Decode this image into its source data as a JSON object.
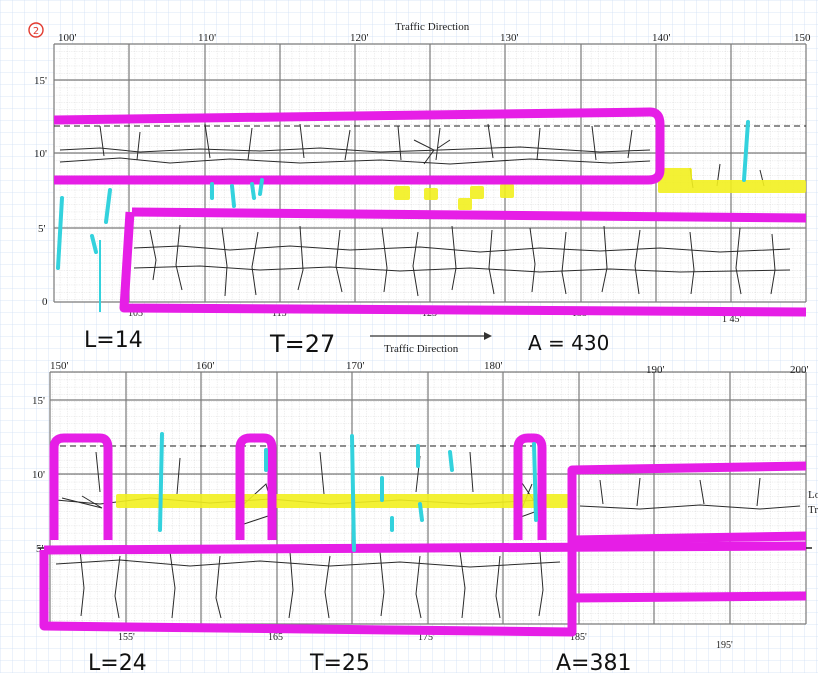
{
  "page_marker": "2",
  "panel_top": {
    "title": "Traffic Direction",
    "station_labels": [
      "100'",
      "110'",
      "120'",
      "130'",
      "140'",
      "150"
    ],
    "bottom_station_labels": [
      "105",
      "115'",
      "125'",
      "135'",
      "1 45'"
    ],
    "y_labels": [
      "15'",
      "10'",
      "5'",
      "0"
    ],
    "direction_label": "Traffic Direction",
    "notes": {
      "L": "L=14",
      "T": "T=27",
      "A": "A = 430"
    }
  },
  "panel_bottom": {
    "station_labels": [
      "150'",
      "160'",
      "170'",
      "180'",
      "190'",
      "200'"
    ],
    "bottom_station_labels": [
      "155'",
      "165",
      "175'",
      "185'",
      "195'"
    ],
    "y_labels": [
      "15'",
      "10'",
      "5'",
      "0"
    ],
    "side_text": [
      "Lo",
      "Tr"
    ],
    "notes": {
      "L": "L=24",
      "T": "T=25",
      "A": "A=381"
    }
  },
  "colors": {
    "notebook_grid": "#cfe0f5",
    "chart_grid": "#9a9a9a",
    "magenta": "#e61ee6",
    "yellow": "#f2f01f",
    "cyan": "#33d2dd",
    "ink": "#222222",
    "marker_red": "#e23a2f"
  }
}
